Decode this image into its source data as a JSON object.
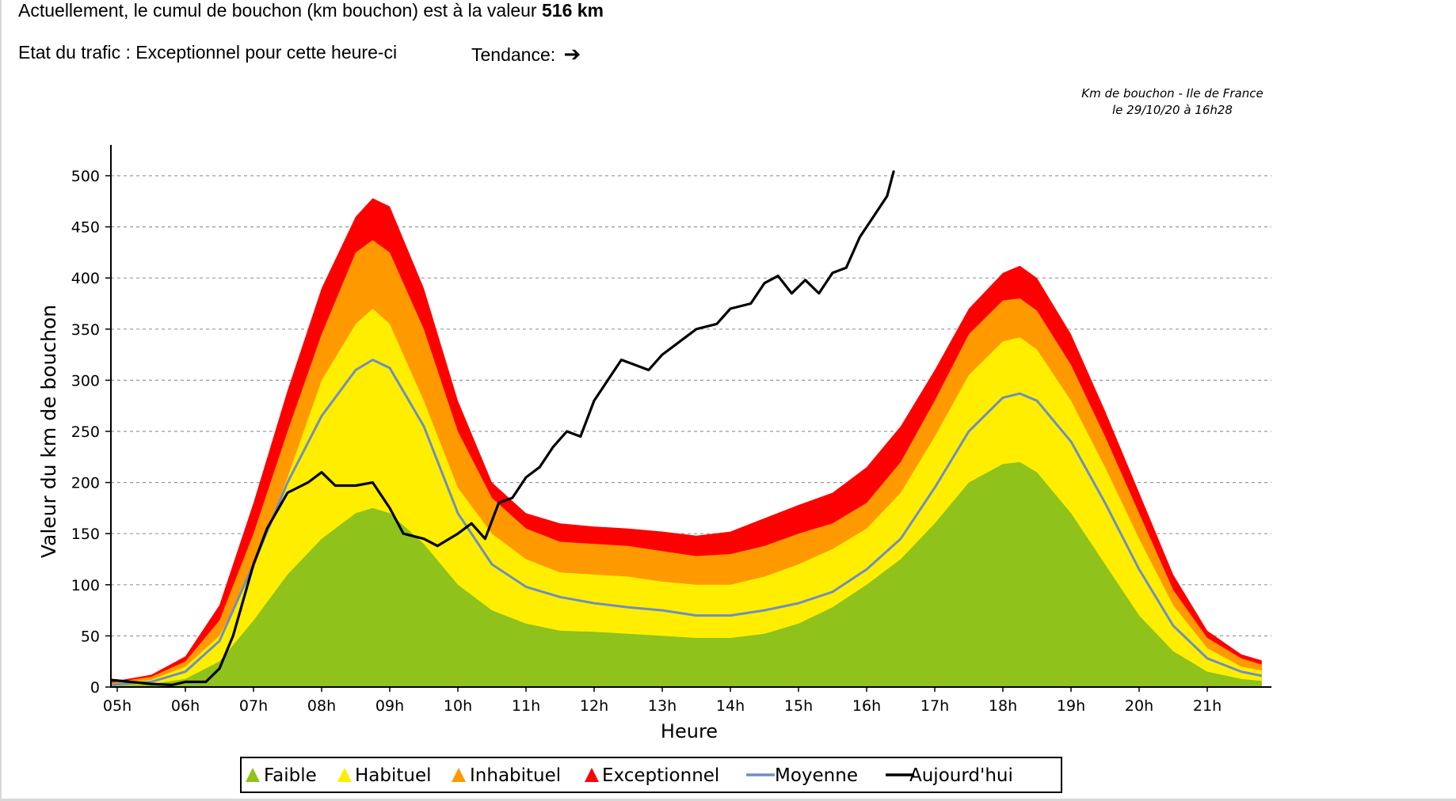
{
  "header": {
    "headline_prefix": "Actuellement, le cumul de bouchon (km bouchon) est à la valeur",
    "headline_value": "516 km",
    "etat_text": "Etat du trafic : Exceptionnel pour cette heure-ci",
    "tendance_label": "Tendance:",
    "tendance_icon": "arrow-right-icon"
  },
  "chart_data": {
    "type": "area",
    "title": "Km de bouchon - Ile de France",
    "subtitle": "le 29/10/20 à 16h28",
    "xlabel": "Heure",
    "ylabel": "Valeur du  km de bouchon",
    "xlim": [
      4.9,
      21.8
    ],
    "ylim": [
      0,
      530
    ],
    "x_ticks": [
      5,
      6,
      7,
      8,
      9,
      10,
      11,
      12,
      13,
      14,
      15,
      16,
      17,
      18,
      19,
      20,
      21
    ],
    "x_tick_labels": [
      "05h",
      "06h",
      "07h",
      "08h",
      "09h",
      "10h",
      "11h",
      "12h",
      "13h",
      "14h",
      "15h",
      "16h",
      "17h",
      "18h",
      "19h",
      "20h",
      "21h"
    ],
    "y_ticks": [
      0,
      50,
      100,
      150,
      200,
      250,
      300,
      350,
      400,
      450,
      500
    ],
    "y_tick_labels": [
      "0",
      "50",
      "100",
      "150",
      "200",
      "250",
      "300",
      "350",
      "400",
      "450",
      "500"
    ],
    "grid": "horizontal-dashed",
    "legend_position": "bottom",
    "hours": [
      4.9,
      5.5,
      6.0,
      6.5,
      7.0,
      7.5,
      8.0,
      8.5,
      8.75,
      9.0,
      9.5,
      10.0,
      10.5,
      11.0,
      11.5,
      12.0,
      12.5,
      13.0,
      13.5,
      14.0,
      14.5,
      15.0,
      15.5,
      16.0,
      16.5,
      17.0,
      17.5,
      18.0,
      18.25,
      18.5,
      19.0,
      19.5,
      20.0,
      20.5,
      21.0,
      21.5,
      21.8
    ],
    "bands": [
      {
        "name": "Exceptionnel",
        "color": "#ff0000",
        "values": [
          5,
          12,
          30,
          80,
          180,
          290,
          390,
          460,
          478,
          470,
          390,
          280,
          200,
          170,
          160,
          157,
          155,
          152,
          148,
          152,
          165,
          178,
          190,
          215,
          255,
          310,
          370,
          405,
          412,
          400,
          345,
          270,
          190,
          110,
          55,
          32,
          26
        ]
      },
      {
        "name": "Inhabituel",
        "color": "#ff9900",
        "values": [
          4,
          10,
          25,
          65,
          150,
          250,
          345,
          425,
          437,
          425,
          350,
          250,
          185,
          155,
          142,
          140,
          138,
          133,
          128,
          130,
          138,
          150,
          160,
          180,
          220,
          280,
          345,
          378,
          380,
          368,
          315,
          245,
          170,
          95,
          48,
          28,
          22
        ]
      },
      {
        "name": "Habituel",
        "color": "#ffee00",
        "values": [
          3,
          7,
          20,
          50,
          115,
          205,
          300,
          355,
          370,
          355,
          280,
          195,
          150,
          125,
          112,
          110,
          108,
          103,
          100,
          100,
          108,
          120,
          135,
          155,
          190,
          245,
          305,
          338,
          342,
          330,
          280,
          215,
          145,
          80,
          38,
          20,
          16
        ]
      },
      {
        "name": "Faible",
        "color": "#8fc21b",
        "values": [
          1,
          3,
          8,
          25,
          65,
          110,
          145,
          170,
          175,
          170,
          140,
          100,
          75,
          62,
          55,
          54,
          52,
          50,
          48,
          48,
          52,
          62,
          78,
          100,
          125,
          160,
          200,
          218,
          220,
          210,
          170,
          120,
          70,
          35,
          15,
          8,
          6
        ]
      }
    ],
    "series": [
      {
        "name": "Moyenne",
        "color": "#6f8fbf",
        "x": [
          4.9,
          5.5,
          6.0,
          6.5,
          7.0,
          7.5,
          8.0,
          8.5,
          8.75,
          9.0,
          9.5,
          10.0,
          10.5,
          11.0,
          11.5,
          12.0,
          12.5,
          13.0,
          13.5,
          14.0,
          14.5,
          15.0,
          15.5,
          16.0,
          16.5,
          17.0,
          17.5,
          18.0,
          18.25,
          18.5,
          19.0,
          19.5,
          20.0,
          20.5,
          21.0,
          21.5,
          21.8
        ],
        "values": [
          2,
          5,
          15,
          45,
          120,
          200,
          265,
          310,
          320,
          312,
          255,
          170,
          120,
          98,
          88,
          82,
          78,
          75,
          70,
          70,
          75,
          82,
          93,
          115,
          145,
          195,
          250,
          283,
          287,
          280,
          240,
          180,
          115,
          60,
          28,
          15,
          11
        ]
      },
      {
        "name": "Aujourd'hui",
        "color": "#000000",
        "x": [
          4.9,
          5.2,
          5.5,
          5.8,
          6.0,
          6.3,
          6.5,
          6.7,
          7.0,
          7.2,
          7.5,
          7.8,
          8.0,
          8.2,
          8.5,
          8.75,
          9.0,
          9.2,
          9.5,
          9.7,
          10.0,
          10.2,
          10.4,
          10.6,
          10.8,
          11.0,
          11.2,
          11.4,
          11.6,
          11.8,
          12.0,
          12.2,
          12.4,
          12.6,
          12.8,
          13.0,
          13.2,
          13.5,
          13.8,
          14.0,
          14.3,
          14.5,
          14.7,
          14.9,
          15.1,
          15.3,
          15.5,
          15.7,
          15.9,
          16.1,
          16.3,
          16.4
        ],
        "values": [
          7,
          5,
          3,
          2,
          5,
          5,
          18,
          50,
          120,
          155,
          190,
          200,
          210,
          197,
          197,
          200,
          175,
          150,
          145,
          138,
          150,
          160,
          145,
          180,
          185,
          205,
          215,
          235,
          250,
          245,
          280,
          300,
          320,
          315,
          310,
          325,
          335,
          350,
          355,
          370,
          375,
          395,
          402,
          385,
          398,
          385,
          405,
          410,
          440,
          460,
          480,
          505
        ]
      }
    ],
    "legend": [
      {
        "label": "Faible",
        "color": "#8fc21b",
        "marker": "triangle"
      },
      {
        "label": "Habituel",
        "color": "#ffee00",
        "marker": "triangle"
      },
      {
        "label": "Inhabituel",
        "color": "#ff9900",
        "marker": "triangle"
      },
      {
        "label": "Exceptionnel",
        "color": "#ff0000",
        "marker": "triangle"
      },
      {
        "label": "Moyenne",
        "color": "#6f8fbf",
        "marker": "line"
      },
      {
        "label": "Aujourd'hui",
        "color": "#000000",
        "marker": "line"
      }
    ]
  }
}
